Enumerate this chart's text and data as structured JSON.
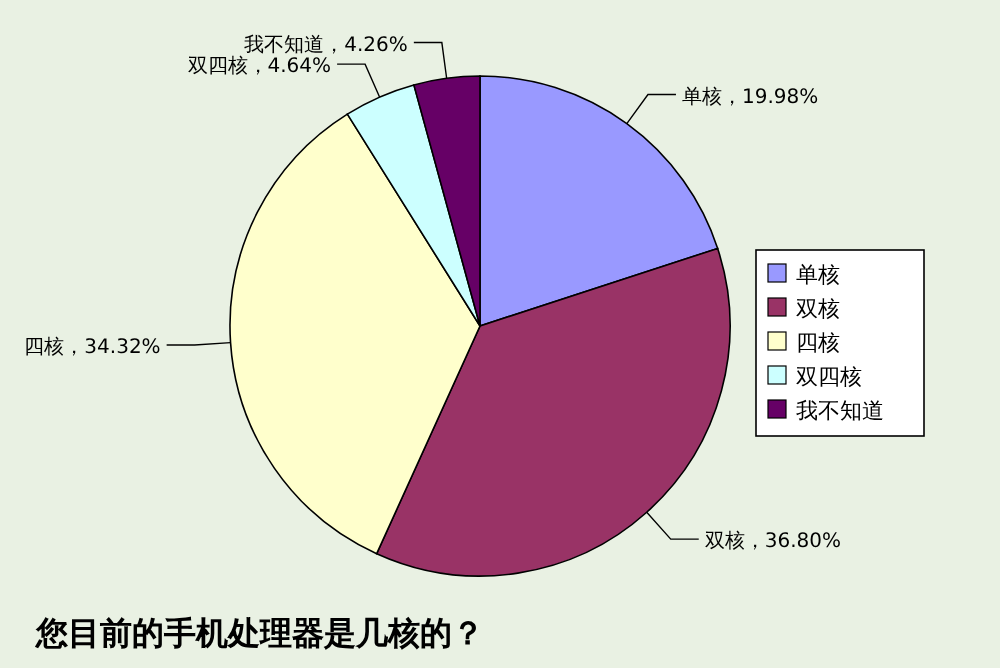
{
  "chart_data": {
    "type": "pie",
    "title": "您目前的手机处理器是几核的？",
    "categories": [
      "单核",
      "双核",
      "四核",
      "双四核",
      "我不知道"
    ],
    "values": [
      19.98,
      36.8,
      34.32,
      4.64,
      4.26
    ],
    "colors": [
      "#9999ff",
      "#993366",
      "#ffffcc",
      "#ccffff",
      "#660066"
    ],
    "value_labels": [
      "，19.98%",
      "，36.80%",
      "，34.32%",
      "，4.64%",
      "，4.26%"
    ],
    "legend": "right"
  }
}
